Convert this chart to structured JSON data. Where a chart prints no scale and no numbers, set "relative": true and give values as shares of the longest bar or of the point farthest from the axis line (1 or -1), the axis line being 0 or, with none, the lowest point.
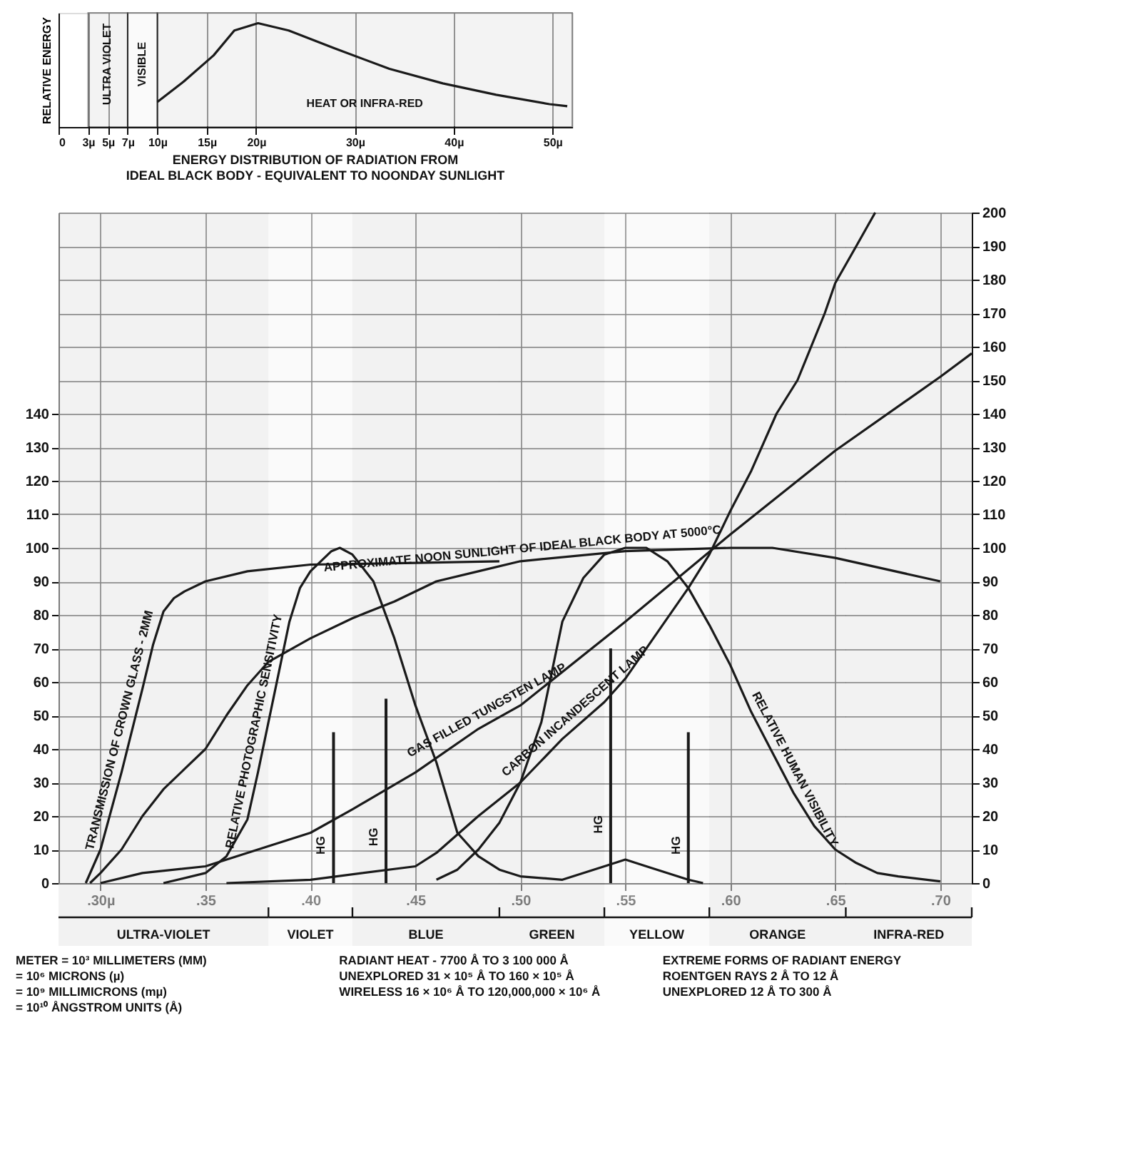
{
  "chart_data": [
    {
      "type": "line",
      "title": "ENERGY DISTRIBUTION OF RADIATION FROM\nIDEAL BLACK BODY - EQUIVALENT TO NOONDAY SUNLIGHT",
      "ylabel": "RELATIVE ENERGY",
      "relative": true,
      "grid": "x",
      "xlim": [
        0,
        52
      ],
      "xticks": [
        0,
        {
          "value": 3,
          "label": "3µ"
        },
        {
          "value": 5,
          "label": "5µ"
        },
        {
          "value": 7,
          "label": "7µ"
        },
        {
          "value": 10,
          "label": "10µ"
        },
        {
          "value": 15,
          "label": "15µ"
        },
        {
          "value": 20,
          "label": "20µ"
        },
        {
          "value": 30,
          "label": "30µ"
        },
        {
          "value": 40,
          "label": "40µ"
        },
        {
          "value": 50,
          "label": "50µ"
        }
      ],
      "bands": [
        {
          "axis": "x",
          "from": 3,
          "to": 7,
          "label": "ULTRA VIOLET"
        },
        {
          "axis": "x",
          "from": 7,
          "to": 10,
          "label": "VISIBLE"
        },
        {
          "axis": "x",
          "from": 10,
          "to": 52,
          "label": "HEAT OR INFRA-RED"
        }
      ],
      "series": [
        {
          "color": "#1a1a1a",
          "x": [
            10,
            12.7,
            15.7,
            17.8,
            20.2,
            23.3,
            27.9,
            33.5,
            38.9,
            44.3,
            49.7,
            51.5
          ],
          "values": [
            0.24,
            0.44,
            0.69,
            0.93,
            1,
            0.93,
            0.76,
            0.56,
            0.42,
            0.31,
            0.22,
            0.2
          ]
        }
      ]
    },
    {
      "type": "line",
      "grid": true,
      "xlim": [
        0.28,
        0.715
      ],
      "ylim": [
        0,
        200
      ],
      "y2lim": [
        0,
        200
      ],
      "xticks": [
        {
          "value": 0.3,
          "label": ".30µ"
        },
        {
          "value": 0.35,
          "label": ".35"
        },
        {
          "value": 0.4,
          "label": ".40"
        },
        {
          "value": 0.45,
          "label": ".45"
        },
        {
          "value": 0.5,
          "label": ".50"
        },
        {
          "value": 0.55,
          "label": ".55"
        },
        {
          "value": 0.6,
          "label": ".60"
        },
        {
          "value": 0.65,
          "label": ".65"
        },
        {
          "value": 0.7,
          "label": ".70"
        }
      ],
      "yticks": [
        0,
        10,
        20,
        30,
        40,
        50,
        60,
        70,
        80,
        90,
        100,
        110,
        120,
        130,
        140
      ],
      "y2ticks": [
        0,
        10,
        20,
        30,
        40,
        50,
        60,
        70,
        80,
        90,
        100,
        110,
        120,
        130,
        140,
        150,
        160,
        170,
        180,
        190,
        200
      ],
      "bands": [
        {
          "axis": "x",
          "from": 0.28,
          "to": 0.38,
          "label": "ULTRA-VIOLET"
        },
        {
          "axis": "x",
          "from": 0.38,
          "to": 0.42,
          "label": "VIOLET"
        },
        {
          "axis": "x",
          "from": 0.42,
          "to": 0.49,
          "label": "BLUE"
        },
        {
          "axis": "x",
          "from": 0.49,
          "to": 0.54,
          "label": "GREEN"
        },
        {
          "axis": "x",
          "from": 0.54,
          "to": 0.59,
          "label": "YELLOW"
        },
        {
          "axis": "x",
          "from": 0.59,
          "to": 0.655,
          "label": "ORANGE"
        },
        {
          "axis": "x",
          "from": 0.655,
          "to": 0.715,
          "label": "INFRA-RED"
        }
      ],
      "annotations": [
        "METER = 10³ MILLIMETERS (MM)\n= 10⁶ MICRONS (µ)\n= 10⁹ MILLIMICRONS (mµ)\n= 10¹⁰ ÅNGSTROM UNITS (Å)",
        "RADIANT HEAT - 7700 Å TO 3 100 000 Å\nUNEXPLORED 31 × 10⁵ Å TO 160 × 10⁵ Å\nWIRELESS 16 × 10⁶ Å TO 120,000,000 × 10⁶ Å",
        "EXTREME FORMS OF RADIANT ENERGY\nROENTGEN RAYS 2 Å TO 12 Å\nUNEXPLORED 12 Å TO 300 Å"
      ],
      "series": [
        {
          "name": "TRANSMISSION OF CROWN GLASS - 2MM",
          "color": "#1a1a1a",
          "x": [
            0.293,
            0.3,
            0.31,
            0.32,
            0.325,
            0.33,
            0.335,
            0.34,
            0.35,
            0.37,
            0.4,
            0.45,
            0.49
          ],
          "values": [
            0,
            10,
            33,
            58,
            71,
            81,
            85,
            87,
            90,
            93,
            95,
            95.5,
            96
          ]
        },
        {
          "name": "RELATIVE PHOTOGRAPHIC SENSITIVITY",
          "color": "#1a1a1a",
          "x": [
            0.33,
            0.35,
            0.36,
            0.37,
            0.375,
            0.38,
            0.385,
            0.39,
            0.395,
            0.4,
            0.41,
            0.414,
            0.42,
            0.43,
            0.44,
            0.45,
            0.46,
            0.47,
            0.48,
            0.49,
            0.5,
            0.52,
            0.54,
            0.55,
            0.56,
            0.58,
            0.587
          ],
          "values": [
            0,
            3,
            8,
            19,
            33,
            48,
            63,
            78,
            88,
            93,
            99,
            100,
            98,
            90,
            73,
            53,
            36,
            15,
            8,
            4,
            2,
            1,
            5,
            7,
            5,
            1,
            0
          ]
        },
        {
          "name": "APPROXIMATE NOON SUNLIGHT OF IDEAL BLACK BODY AT 5000°C",
          "color": "#1a1a1a",
          "x": [
            0.295,
            0.3,
            0.31,
            0.32,
            0.33,
            0.34,
            0.35,
            0.36,
            0.37,
            0.38,
            0.4,
            0.42,
            0.44,
            0.46,
            0.48,
            0.5,
            0.55,
            0.6,
            0.62,
            0.65,
            0.7
          ],
          "values": [
            0,
            3,
            10,
            20,
            28,
            34,
            40,
            50,
            59,
            66,
            73,
            79,
            84,
            90,
            93,
            96,
            99,
            100,
            100,
            97,
            90
          ]
        },
        {
          "name": "GAS FILLED TUNGSTEN LAMP",
          "color": "#1a1a1a",
          "x": [
            0.3,
            0.32,
            0.35,
            0.38,
            0.4,
            0.42,
            0.45,
            0.48,
            0.5,
            0.55,
            0.6,
            0.65,
            0.7,
            0.715
          ],
          "values": [
            0,
            3,
            5,
            11,
            15,
            22,
            33,
            46,
            53,
            78,
            104,
            129,
            151,
            158
          ]
        },
        {
          "name": "CARBON INCANDESCENT LAMP",
          "color": "#1a1a1a",
          "x": [
            0.36,
            0.4,
            0.45,
            0.46,
            0.48,
            0.5,
            0.52,
            0.54,
            0.55,
            0.57,
            0.58,
            0.59,
            0.6,
            0.61,
            0.622,
            0.632,
            0.645,
            0.65,
            0.66,
            0.669
          ],
          "values": [
            0,
            1,
            5,
            9,
            20,
            30,
            43,
            54,
            61,
            79,
            88,
            98,
            111,
            123,
            140,
            150,
            170,
            179,
            190,
            200
          ]
        },
        {
          "name": "RELATIVE HUMAN VISIBILITY",
          "color": "#1a1a1a",
          "x": [
            0.46,
            0.47,
            0.48,
            0.49,
            0.5,
            0.51,
            0.52,
            0.53,
            0.54,
            0.55,
            0.56,
            0.57,
            0.58,
            0.59,
            0.6,
            0.61,
            0.62,
            0.63,
            0.64,
            0.65,
            0.66,
            0.67,
            0.68,
            0.7
          ],
          "values": [
            1,
            4,
            10,
            18,
            30,
            48,
            78,
            91,
            98,
            100,
            100,
            96,
            88,
            77,
            65,
            51,
            39,
            27,
            17,
            10,
            6,
            3,
            2,
            0.5
          ]
        },
        {
          "name": "HG",
          "type": "bar",
          "color": "#1a1a1a",
          "x": [
            0.411,
            0.436,
            0.543,
            0.58
          ],
          "values": [
            45,
            55,
            70,
            45
          ]
        }
      ]
    }
  ]
}
